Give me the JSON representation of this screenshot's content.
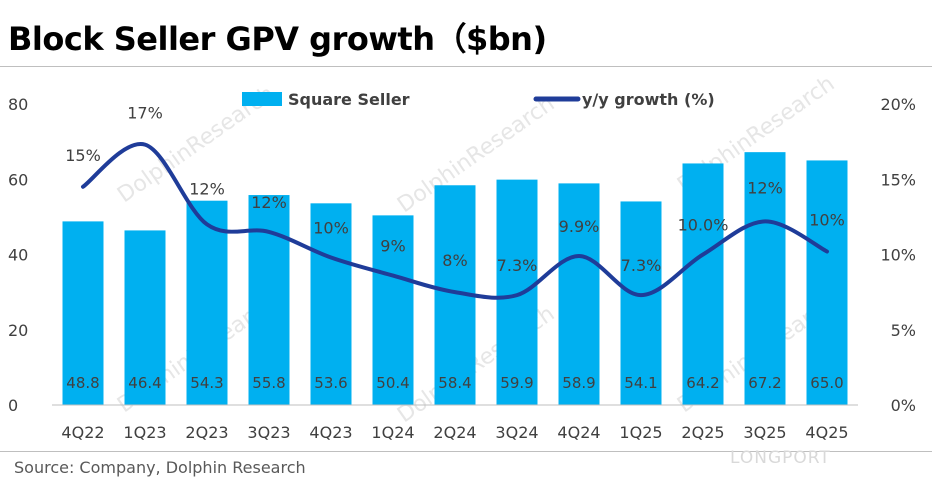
{
  "header": {
    "title": "Block Seller GPV growth（$bn)"
  },
  "footer": {
    "source": "Source: Company, Dolphin Research"
  },
  "watermark": {
    "text": "DolphinResearch",
    "logo_text": "LONGPORT"
  },
  "chart_data": {
    "type": "bar",
    "categories": [
      "4Q22",
      "1Q23",
      "2Q23",
      "3Q23",
      "4Q23",
      "1Q24",
      "2Q24",
      "3Q24",
      "4Q24",
      "1Q25",
      "2Q25",
      "3Q25",
      "4Q25"
    ],
    "series": [
      {
        "name": "Square Seller",
        "type": "bar",
        "axis": "left",
        "color": "#00b0f0",
        "values": [
          48.8,
          46.4,
          54.3,
          55.8,
          53.6,
          50.4,
          58.4,
          59.9,
          58.9,
          54.1,
          64.2,
          67.2,
          65.0
        ],
        "labels": [
          "48.8",
          "46.4",
          "54.3",
          "55.8",
          "53.6",
          "50.4",
          "58.4",
          "59.9",
          "58.9",
          "54.1",
          "64.2",
          "67.2",
          "65.0"
        ]
      },
      {
        "name": "y/y growth (%)",
        "type": "line",
        "axis": "right",
        "color": "#1f3c99",
        "values": [
          14.5,
          17.3,
          12.0,
          11.5,
          9.8,
          8.6,
          7.5,
          7.3,
          9.9,
          7.3,
          10.0,
          12.2,
          10.2
        ],
        "labels": [
          "15%",
          "17%",
          "12%",
          "12%",
          "10%",
          "9%",
          "8%",
          "7.3%",
          "9.9%",
          "7.3%",
          "10.0%",
          "12%",
          "10%"
        ]
      }
    ],
    "y_left": {
      "min": 0,
      "max": 80,
      "ticks": [
        "0",
        "20",
        "40",
        "60",
        "80"
      ]
    },
    "y_right": {
      "min": 0,
      "max": 20,
      "ticks": [
        "0%",
        "5%",
        "10%",
        "15%",
        "20%"
      ]
    },
    "legend": "top",
    "grid": false
  }
}
